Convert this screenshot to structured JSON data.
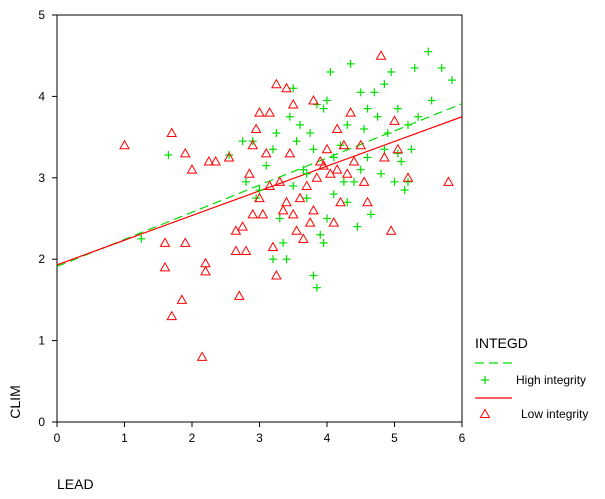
{
  "chart_data": {
    "type": "scatter",
    "xlabel": "LEAD",
    "ylabel": "CLIM",
    "xlim": [
      0,
      6
    ],
    "ylim": [
      0,
      5
    ],
    "xticks": [
      "0",
      "1",
      "2",
      "3",
      "4",
      "5",
      "6"
    ],
    "yticks": [
      "0",
      "1",
      "2",
      "3",
      "4",
      "5"
    ],
    "legend": {
      "title": "INTEGD",
      "placement": "right",
      "items": [
        {
          "series": "High integrity",
          "line": "dashed",
          "marker": "+"
        },
        {
          "series": "Low integrity",
          "line": "solid",
          "marker": "triangle"
        }
      ]
    },
    "series": [
      {
        "name": "High integrity",
        "color": "#00dd00",
        "marker": "+",
        "fit_line": {
          "style": "dashed",
          "x": [
            0,
            6
          ],
          "y": [
            1.91,
            3.91
          ]
        },
        "points": [
          [
            1.25,
            2.25
          ],
          [
            1.65,
            3.28
          ],
          [
            2.55,
            3.28
          ],
          [
            2.75,
            3.45
          ],
          [
            2.8,
            2.95
          ],
          [
            2.9,
            3.45
          ],
          [
            2.95,
            2.75
          ],
          [
            3.0,
            2.85
          ],
          [
            3.1,
            3.15
          ],
          [
            3.2,
            3.35
          ],
          [
            3.2,
            2.0
          ],
          [
            3.3,
            2.5
          ],
          [
            3.35,
            2.2
          ],
          [
            3.4,
            2.0
          ],
          [
            3.45,
            3.75
          ],
          [
            3.5,
            4.1
          ],
          [
            3.5,
            2.9
          ],
          [
            3.55,
            3.45
          ],
          [
            3.6,
            3.65
          ],
          [
            3.65,
            3.1
          ],
          [
            3.7,
            2.75
          ],
          [
            3.75,
            3.55
          ],
          [
            3.8,
            3.35
          ],
          [
            3.8,
            1.8
          ],
          [
            3.85,
            1.65
          ],
          [
            3.85,
            3.9
          ],
          [
            3.9,
            2.3
          ],
          [
            3.95,
            3.85
          ],
          [
            4.0,
            3.95
          ],
          [
            4.0,
            2.5
          ],
          [
            4.05,
            4.3
          ],
          [
            4.1,
            3.25
          ],
          [
            4.2,
            3.4
          ],
          [
            4.25,
            2.95
          ],
          [
            4.3,
            3.65
          ],
          [
            4.35,
            4.4
          ],
          [
            4.4,
            2.95
          ],
          [
            4.45,
            2.4
          ],
          [
            4.5,
            3.1
          ],
          [
            4.55,
            3.6
          ],
          [
            4.6,
            3.85
          ],
          [
            4.65,
            2.55
          ],
          [
            4.7,
            4.05
          ],
          [
            4.75,
            3.75
          ],
          [
            4.8,
            3.05
          ],
          [
            4.85,
            4.15
          ],
          [
            4.9,
            3.55
          ],
          [
            4.95,
            4.3
          ],
          [
            5.0,
            2.95
          ],
          [
            5.05,
            3.85
          ],
          [
            5.1,
            3.2
          ],
          [
            5.15,
            2.85
          ],
          [
            5.2,
            3.65
          ],
          [
            5.25,
            3.35
          ],
          [
            5.3,
            4.35
          ],
          [
            5.35,
            3.75
          ],
          [
            5.5,
            4.55
          ],
          [
            5.55,
            3.95
          ],
          [
            5.7,
            4.35
          ],
          [
            5.85,
            4.2
          ],
          [
            4.1,
            2.8
          ],
          [
            3.95,
            2.2
          ],
          [
            4.3,
            2.7
          ],
          [
            4.6,
            3.25
          ],
          [
            4.85,
            3.35
          ],
          [
            5.05,
            3.3
          ],
          [
            3.25,
            3.55
          ],
          [
            3.7,
            3.05
          ],
          [
            4.5,
            4.05
          ],
          [
            5.2,
            2.95
          ]
        ]
      },
      {
        "name": "Low integrity",
        "color": "#ff0000",
        "marker": "triangle",
        "fit_line": {
          "style": "solid",
          "x": [
            0,
            6
          ],
          "y": [
            1.93,
            3.75
          ]
        },
        "points": [
          [
            1.0,
            3.4
          ],
          [
            1.6,
            2.2
          ],
          [
            1.6,
            1.9
          ],
          [
            1.7,
            1.3
          ],
          [
            1.7,
            3.55
          ],
          [
            1.85,
            1.5
          ],
          [
            1.9,
            2.2
          ],
          [
            1.9,
            3.3
          ],
          [
            2.0,
            3.1
          ],
          [
            2.15,
            0.8
          ],
          [
            2.2,
            1.95
          ],
          [
            2.2,
            1.85
          ],
          [
            2.25,
            3.2
          ],
          [
            2.35,
            3.2
          ],
          [
            2.55,
            3.25
          ],
          [
            2.65,
            2.35
          ],
          [
            2.7,
            1.55
          ],
          [
            2.75,
            2.4
          ],
          [
            2.8,
            2.1
          ],
          [
            2.85,
            3.05
          ],
          [
            2.9,
            3.4
          ],
          [
            2.95,
            3.6
          ],
          [
            3.0,
            3.8
          ],
          [
            3.05,
            2.55
          ],
          [
            3.1,
            3.3
          ],
          [
            3.15,
            2.9
          ],
          [
            3.2,
            2.15
          ],
          [
            3.25,
            1.8
          ],
          [
            3.3,
            2.95
          ],
          [
            3.35,
            2.6
          ],
          [
            3.4,
            2.7
          ],
          [
            3.45,
            3.3
          ],
          [
            3.5,
            2.55
          ],
          [
            3.55,
            2.35
          ],
          [
            3.6,
            2.75
          ],
          [
            3.65,
            2.25
          ],
          [
            3.7,
            2.9
          ],
          [
            3.75,
            2.45
          ],
          [
            3.8,
            2.6
          ],
          [
            3.85,
            3.0
          ],
          [
            3.9,
            3.2
          ],
          [
            3.95,
            3.15
          ],
          [
            4.0,
            3.35
          ],
          [
            4.05,
            3.05
          ],
          [
            4.1,
            2.45
          ],
          [
            4.15,
            3.6
          ],
          [
            4.2,
            2.7
          ],
          [
            4.25,
            3.4
          ],
          [
            4.3,
            3.05
          ],
          [
            4.35,
            3.8
          ],
          [
            4.4,
            3.2
          ],
          [
            4.5,
            3.4
          ],
          [
            4.55,
            2.95
          ],
          [
            4.6,
            2.7
          ],
          [
            4.8,
            4.5
          ],
          [
            4.85,
            3.25
          ],
          [
            4.95,
            2.35
          ],
          [
            5.0,
            3.7
          ],
          [
            5.05,
            3.35
          ],
          [
            5.2,
            3.0
          ],
          [
            3.4,
            4.1
          ],
          [
            3.5,
            3.9
          ],
          [
            3.8,
            3.95
          ],
          [
            3.0,
            2.75
          ],
          [
            2.65,
            2.1
          ],
          [
            2.9,
            2.55
          ],
          [
            5.8,
            2.95
          ],
          [
            3.15,
            3.8
          ],
          [
            3.25,
            4.15
          ],
          [
            4.15,
            3.1
          ]
        ]
      }
    ]
  }
}
